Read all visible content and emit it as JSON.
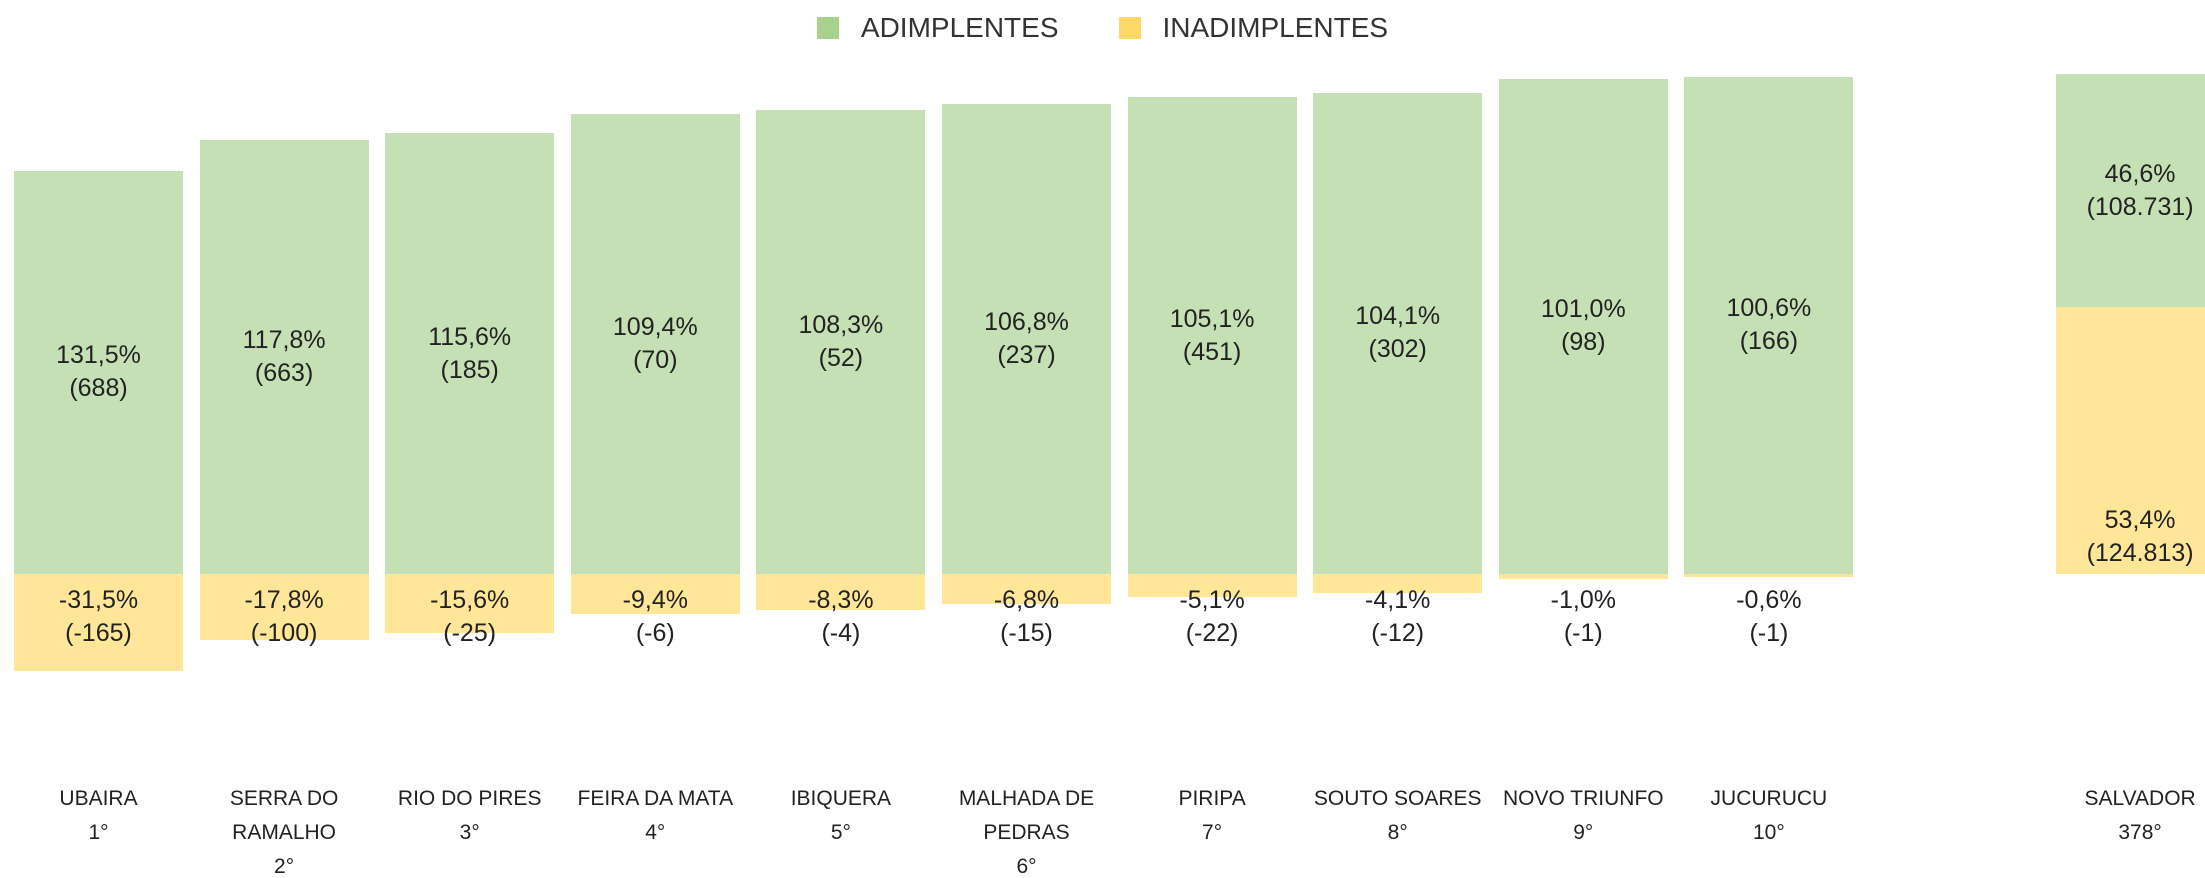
{
  "chart_data": {
    "type": "bar",
    "stacked": "percent",
    "legend": "top",
    "categories": [
      "UBAIRA",
      "SERRA DO RAMALHO",
      "RIO DO PIRES",
      "FEIRA DA MATA",
      "IBIQUERA",
      "MALHADA DE PEDRAS",
      "PIRIPA",
      "SOUTO SOARES",
      "NOVO TRIUNFO",
      "JUCURUCU",
      "SALVADOR"
    ],
    "ranks": [
      "1°",
      "2°",
      "3°",
      "4°",
      "5°",
      "6°",
      "7°",
      "8°",
      "9°",
      "10°",
      "378°"
    ],
    "series": [
      {
        "name": "ADIMPLENTES",
        "color": "#c5e0b4",
        "legend_color": "#a9d18e",
        "values": [
          131.5,
          117.8,
          115.6,
          109.4,
          108.3,
          106.8,
          105.1,
          104.1,
          101.0,
          100.6,
          46.6
        ],
        "value_labels": [
          "131,5%",
          "117,8%",
          "115,6%",
          "109,4%",
          "108,3%",
          "106,8%",
          "105,1%",
          "104,1%",
          "101,0%",
          "100,6%",
          "46,6%"
        ],
        "counts": [
          "(688)",
          "(663)",
          "(185)",
          "(70)",
          "(52)",
          "(237)",
          "(451)",
          "(302)",
          "(98)",
          "(166)",
          "(108.731)"
        ]
      },
      {
        "name": "INADIMPLENTES",
        "color": "#ffe699",
        "legend_color": "#ffd966",
        "values": [
          -31.5,
          -17.8,
          -15.6,
          -9.4,
          -8.3,
          -6.8,
          -5.1,
          -4.1,
          -1.0,
          -0.6,
          53.4
        ],
        "value_labels": [
          "-31,5%",
          "-17,8%",
          "-15,6%",
          "-9,4%",
          "-8,3%",
          "-6,8%",
          "-5,1%",
          "-4,1%",
          "-1,0%",
          "-0,6%",
          "53,4%"
        ],
        "counts": [
          "(-165)",
          "(-100)",
          "(-25)",
          "(-6)",
          "(-4)",
          "(-15)",
          "(-22)",
          "(-12)",
          "(-1)",
          "(-1)",
          "(124.813)"
        ]
      }
    ]
  }
}
